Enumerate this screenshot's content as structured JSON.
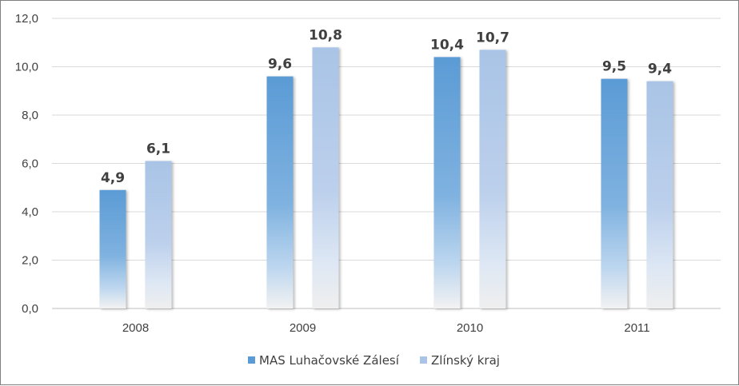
{
  "chart_data": {
    "type": "bar",
    "title": "",
    "xlabel": "",
    "ylabel": "",
    "categories": [
      "2008",
      "2009",
      "2010",
      "2011"
    ],
    "series": [
      {
        "name": "MAS Luhačovské Zálesí",
        "values": [
          4.9,
          9.6,
          10.4,
          9.5
        ],
        "labels": [
          "4,9",
          "9,6",
          "10,4",
          "9,5"
        ]
      },
      {
        "name": "Zlínský kraj",
        "values": [
          6.1,
          10.8,
          10.7,
          9.4
        ],
        "labels": [
          "6,1",
          "10,8",
          "10,7",
          "9,4"
        ]
      }
    ],
    "ylim": [
      0,
      12
    ],
    "y_ticks": [
      "0,0",
      "2,0",
      "4,0",
      "6,0",
      "8,0",
      "10,0",
      "12,0"
    ],
    "grid": true,
    "legend_position": "bottom",
    "colors": {
      "series1": "#5b9bd5",
      "series2": "#a9c4e6",
      "grid": "#d9d9d9",
      "axis": "#bfbfbf",
      "text": "#404040"
    }
  }
}
